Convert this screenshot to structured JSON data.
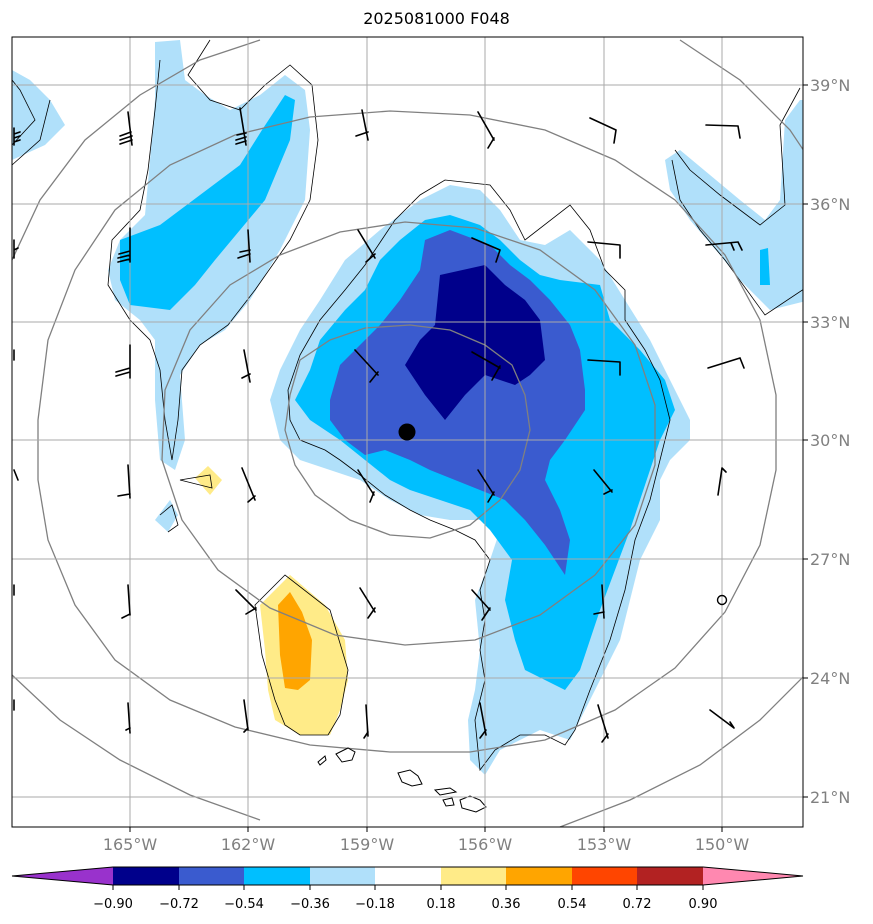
{
  "title": "2025081000 F048",
  "colors": {
    "c_n090": "#00008b",
    "c_n072": "#3a5bcf",
    "c_n054": "#00bfff",
    "c_n036": "#b0e0fa",
    "c_p018": "#ffeb88",
    "c_p036": "#ffa500",
    "c_p054": "#ff4500",
    "c_p072": "#b22222",
    "c_p090": "#ff88b0",
    "under": "#9932cc",
    "over": "#ff88b0",
    "neutral": "#ffffff",
    "grid": "#aaaaaa",
    "range_rings": "#808080",
    "coast": "#000000",
    "barbs": "#000000"
  },
  "map": {
    "lat_labels": [
      "21°N",
      "24°N",
      "27°N",
      "30°N",
      "33°N",
      "36°N",
      "39°N"
    ],
    "lon_labels": [
      "165°W",
      "162°W",
      "159°W",
      "156°W",
      "153°W",
      "150°W"
    ],
    "center_marker": "storm-center",
    "lon_range": [
      -167.9,
      -147.9
    ],
    "lat_range": [
      20.2,
      40.2
    ]
  },
  "colorbar": {
    "ticks": [
      "−0.90",
      "−0.72",
      "−0.54",
      "−0.36",
      "−0.18",
      "0.18",
      "0.36",
      "0.54",
      "0.72",
      "0.90"
    ],
    "extend": "both"
  }
}
